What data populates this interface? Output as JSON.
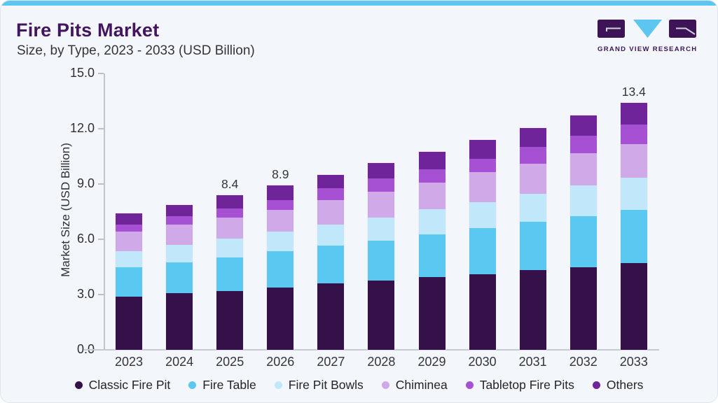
{
  "header": {
    "title": "Fire Pits Market",
    "subtitle": "Size, by Type, 2023 - 2033 (USD Billion)"
  },
  "logo": {
    "brand": "GRAND VIEW RESEARCH",
    "mark_dark": "#3d1456",
    "mark_blue": "#5cc6f1"
  },
  "colors": {
    "card_bg": "#f3f7fb",
    "accent_bar": "#5cc6f1",
    "title_text": "#431560",
    "body_text": "#33343c",
    "axis": "#bfc5cf"
  },
  "chart_data": {
    "type": "bar",
    "stacked": true,
    "title": "Fire Pits Market Size, by Type, 2023 - 2033 (USD Billion)",
    "categories": [
      "2023",
      "2024",
      "2025",
      "2026",
      "2027",
      "2028",
      "2029",
      "2030",
      "2031",
      "2032",
      "2033"
    ],
    "series": [
      {
        "name": "Classic Fire Pit",
        "color": "#341149",
        "values": [
          2.88,
          3.06,
          3.2,
          3.38,
          3.59,
          3.74,
          3.94,
          4.1,
          4.33,
          4.48,
          4.7
        ]
      },
      {
        "name": "Fire Table",
        "color": "#5bc8f2",
        "values": [
          1.61,
          1.69,
          1.82,
          1.97,
          2.08,
          2.2,
          2.32,
          2.5,
          2.62,
          2.77,
          2.91
        ]
      },
      {
        "name": "Fire Pit Bowls",
        "color": "#c0e7fa",
        "values": [
          0.86,
          0.93,
          1.01,
          1.07,
          1.13,
          1.22,
          1.37,
          1.42,
          1.52,
          1.69,
          1.75
        ]
      },
      {
        "name": "Chiminea",
        "color": "#d0a9e8",
        "values": [
          1.05,
          1.13,
          1.15,
          1.19,
          1.33,
          1.43,
          1.43,
          1.61,
          1.63,
          1.73,
          1.82
        ]
      },
      {
        "name": "Tabletop Fire Pits",
        "color": "#a650d4",
        "values": [
          0.38,
          0.44,
          0.48,
          0.53,
          0.63,
          0.71,
          0.73,
          0.75,
          0.93,
          0.95,
          1.03
        ]
      },
      {
        "name": "Others",
        "color": "#6f2499",
        "values": [
          0.63,
          0.63,
          0.75,
          0.77,
          0.75,
          0.84,
          0.97,
          1.03,
          1.0,
          1.11,
          1.19
        ]
      }
    ],
    "total_labels": [
      "",
      "",
      "8.4",
      "8.9",
      "",
      "",
      "",
      "",
      "",
      "",
      "13.4"
    ],
    "totals": [
      7.4,
      7.9,
      8.4,
      8.9,
      9.5,
      10.1,
      10.8,
      11.4,
      12.0,
      12.7,
      13.4
    ],
    "ylabel": "Market Size (USD Billion)",
    "yticks": [
      "0.0",
      "3.0",
      "6.0",
      "9.0",
      "12.0",
      "15.0"
    ],
    "ylim": [
      0,
      15
    ],
    "grid": false,
    "legend_position": "bottom"
  }
}
